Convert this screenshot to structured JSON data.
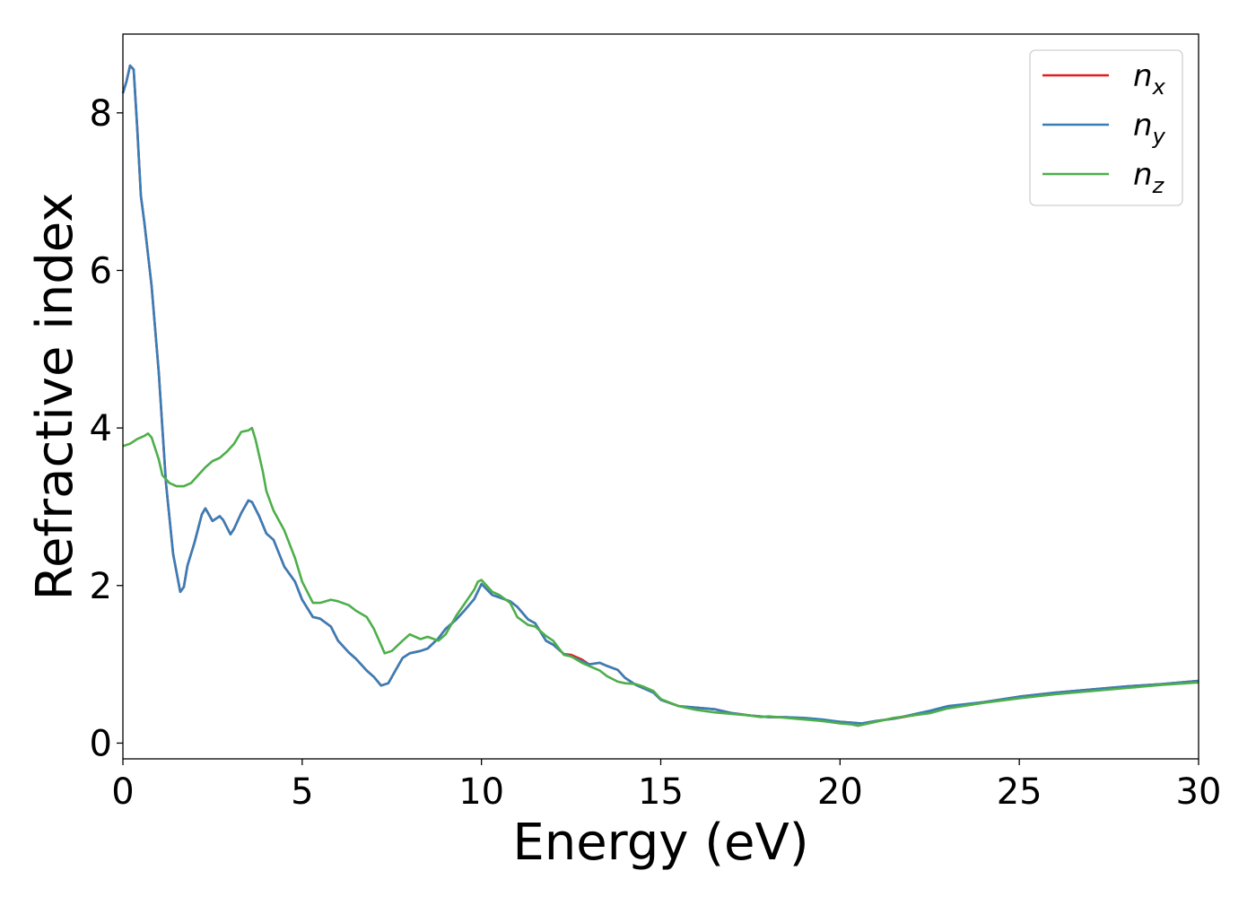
{
  "chart_data": {
    "type": "line",
    "xlabel": "Energy (eV)",
    "ylabel": "Refractive index",
    "xlim": [
      0,
      30
    ],
    "ylim": [
      -0.2,
      9.0
    ],
    "xticks": [
      0,
      5,
      10,
      15,
      20,
      25,
      30
    ],
    "yticks": [
      0,
      2,
      4,
      6,
      8
    ],
    "grid": false,
    "legend_position": "top-right",
    "series": [
      {
        "name": "n",
        "subscript": "x",
        "color": "#e41a1c",
        "x": [
          0.0,
          0.1,
          0.2,
          0.3,
          0.4,
          0.5,
          0.6,
          0.8,
          1.0,
          1.2,
          1.4,
          1.6,
          1.7,
          1.8,
          2.0,
          2.2,
          2.3,
          2.5,
          2.7,
          2.8,
          3.0,
          3.1,
          3.3,
          3.5,
          3.6,
          3.8,
          4.0,
          4.2,
          4.5,
          4.8,
          5.0,
          5.3,
          5.5,
          5.8,
          6.0,
          6.3,
          6.5,
          6.8,
          7.0,
          7.2,
          7.4,
          7.6,
          7.8,
          8.0,
          8.3,
          8.5,
          8.8,
          9.0,
          9.3,
          9.5,
          9.8,
          10.0,
          10.3,
          10.5,
          10.8,
          11.0,
          11.3,
          11.5,
          11.8,
          12.0,
          12.3,
          12.5,
          12.8,
          13.0,
          13.3,
          13.5,
          13.8,
          14.0,
          14.3,
          14.5,
          14.8,
          15.0,
          15.5,
          16.0,
          16.5,
          17.0,
          17.5,
          18.0,
          18.5,
          19.0,
          19.5,
          20.0,
          20.3,
          20.6,
          21.0,
          21.5,
          22.0,
          22.5,
          23.0,
          24.0,
          25.0,
          26.0,
          27.0,
          28.0,
          29.0,
          30.0
        ],
        "y": [
          8.25,
          8.4,
          8.6,
          8.55,
          7.8,
          6.95,
          6.6,
          5.8,
          4.7,
          3.3,
          2.4,
          1.92,
          1.98,
          2.25,
          2.55,
          2.9,
          2.98,
          2.82,
          2.88,
          2.83,
          2.65,
          2.72,
          2.92,
          3.08,
          3.06,
          2.88,
          2.66,
          2.58,
          2.24,
          2.05,
          1.82,
          1.6,
          1.58,
          1.48,
          1.3,
          1.15,
          1.07,
          0.92,
          0.84,
          0.73,
          0.76,
          0.92,
          1.08,
          1.14,
          1.17,
          1.2,
          1.33,
          1.45,
          1.57,
          1.67,
          1.83,
          2.02,
          1.88,
          1.85,
          1.8,
          1.73,
          1.57,
          1.52,
          1.3,
          1.25,
          1.13,
          1.12,
          1.06,
          1.0,
          1.02,
          0.98,
          0.93,
          0.83,
          0.74,
          0.7,
          0.64,
          0.55,
          0.47,
          0.45,
          0.43,
          0.38,
          0.35,
          0.33,
          0.33,
          0.31,
          0.29,
          0.27,
          0.26,
          0.25,
          0.28,
          0.31,
          0.35,
          0.4,
          0.46,
          0.52,
          0.59,
          0.64,
          0.68,
          0.72,
          0.75,
          0.79
        ]
      },
      {
        "name": "n",
        "subscript": "y",
        "color": "#377eb8",
        "x": [
          0.0,
          0.1,
          0.2,
          0.3,
          0.4,
          0.5,
          0.6,
          0.8,
          1.0,
          1.2,
          1.4,
          1.6,
          1.7,
          1.8,
          2.0,
          2.2,
          2.3,
          2.5,
          2.7,
          2.8,
          3.0,
          3.1,
          3.3,
          3.5,
          3.6,
          3.8,
          4.0,
          4.2,
          4.5,
          4.8,
          5.0,
          5.3,
          5.5,
          5.8,
          6.0,
          6.3,
          6.5,
          6.8,
          7.0,
          7.2,
          7.4,
          7.6,
          7.8,
          8.0,
          8.3,
          8.5,
          8.8,
          9.0,
          9.3,
          9.5,
          9.8,
          10.0,
          10.3,
          10.5,
          10.8,
          11.0,
          11.3,
          11.5,
          11.8,
          12.0,
          12.3,
          12.5,
          12.8,
          13.0,
          13.3,
          13.5,
          13.8,
          14.0,
          14.3,
          14.5,
          14.8,
          15.0,
          15.5,
          16.0,
          16.5,
          17.0,
          17.5,
          18.0,
          18.5,
          19.0,
          19.5,
          20.0,
          20.3,
          20.6,
          21.0,
          21.5,
          22.0,
          22.5,
          23.0,
          24.0,
          25.0,
          26.0,
          27.0,
          28.0,
          29.0,
          30.0
        ],
        "y": [
          8.25,
          8.4,
          8.6,
          8.55,
          7.8,
          6.95,
          6.6,
          5.8,
          4.7,
          3.3,
          2.4,
          1.92,
          1.98,
          2.25,
          2.55,
          2.9,
          2.98,
          2.82,
          2.88,
          2.83,
          2.65,
          2.72,
          2.92,
          3.08,
          3.06,
          2.88,
          2.66,
          2.58,
          2.24,
          2.05,
          1.82,
          1.6,
          1.58,
          1.48,
          1.3,
          1.15,
          1.07,
          0.92,
          0.84,
          0.73,
          0.76,
          0.92,
          1.08,
          1.14,
          1.17,
          1.2,
          1.33,
          1.45,
          1.57,
          1.67,
          1.83,
          2.02,
          1.88,
          1.85,
          1.8,
          1.73,
          1.57,
          1.52,
          1.3,
          1.25,
          1.13,
          1.1,
          1.04,
          1.0,
          1.02,
          0.98,
          0.93,
          0.83,
          0.74,
          0.7,
          0.64,
          0.55,
          0.47,
          0.45,
          0.43,
          0.38,
          0.35,
          0.33,
          0.33,
          0.32,
          0.3,
          0.27,
          0.26,
          0.25,
          0.28,
          0.31,
          0.36,
          0.41,
          0.47,
          0.52,
          0.59,
          0.64,
          0.68,
          0.72,
          0.75,
          0.79
        ]
      },
      {
        "name": "n",
        "subscript": "z",
        "color": "#4daf4a",
        "x": [
          0.0,
          0.2,
          0.4,
          0.6,
          0.7,
          0.8,
          1.0,
          1.1,
          1.3,
          1.5,
          1.7,
          1.9,
          2.1,
          2.3,
          2.5,
          2.7,
          2.9,
          3.1,
          3.3,
          3.5,
          3.6,
          3.7,
          3.9,
          4.0,
          4.2,
          4.5,
          4.8,
          5.0,
          5.3,
          5.5,
          5.8,
          6.0,
          6.3,
          6.5,
          6.8,
          7.0,
          7.3,
          7.5,
          7.8,
          8.0,
          8.3,
          8.5,
          8.8,
          9.0,
          9.3,
          9.5,
          9.8,
          9.9,
          10.0,
          10.3,
          10.5,
          10.8,
          11.0,
          11.3,
          11.5,
          11.8,
          12.0,
          12.3,
          12.5,
          12.8,
          13.0,
          13.3,
          13.5,
          13.8,
          14.0,
          14.3,
          14.5,
          14.8,
          15.0,
          15.5,
          16.0,
          16.5,
          17.0,
          17.5,
          17.8,
          18.0,
          18.5,
          19.0,
          19.5,
          20.0,
          20.3,
          20.5,
          21.0,
          21.5,
          22.0,
          22.5,
          23.0,
          24.0,
          25.0,
          26.0,
          27.0,
          28.0,
          29.0,
          30.0
        ],
        "y": [
          3.77,
          3.8,
          3.86,
          3.9,
          3.93,
          3.88,
          3.6,
          3.4,
          3.3,
          3.26,
          3.26,
          3.3,
          3.4,
          3.5,
          3.58,
          3.62,
          3.7,
          3.8,
          3.95,
          3.97,
          4.0,
          3.85,
          3.45,
          3.2,
          2.95,
          2.7,
          2.35,
          2.05,
          1.78,
          1.78,
          1.82,
          1.8,
          1.75,
          1.68,
          1.6,
          1.45,
          1.14,
          1.17,
          1.3,
          1.38,
          1.32,
          1.35,
          1.3,
          1.38,
          1.62,
          1.75,
          1.95,
          2.05,
          2.07,
          1.92,
          1.88,
          1.78,
          1.6,
          1.5,
          1.48,
          1.36,
          1.3,
          1.12,
          1.1,
          1.02,
          0.98,
          0.92,
          0.85,
          0.78,
          0.76,
          0.75,
          0.72,
          0.66,
          0.56,
          0.47,
          0.42,
          0.39,
          0.37,
          0.35,
          0.33,
          0.34,
          0.32,
          0.3,
          0.28,
          0.25,
          0.24,
          0.22,
          0.27,
          0.32,
          0.35,
          0.38,
          0.44,
          0.51,
          0.57,
          0.62,
          0.66,
          0.7,
          0.74,
          0.77
        ]
      }
    ]
  }
}
